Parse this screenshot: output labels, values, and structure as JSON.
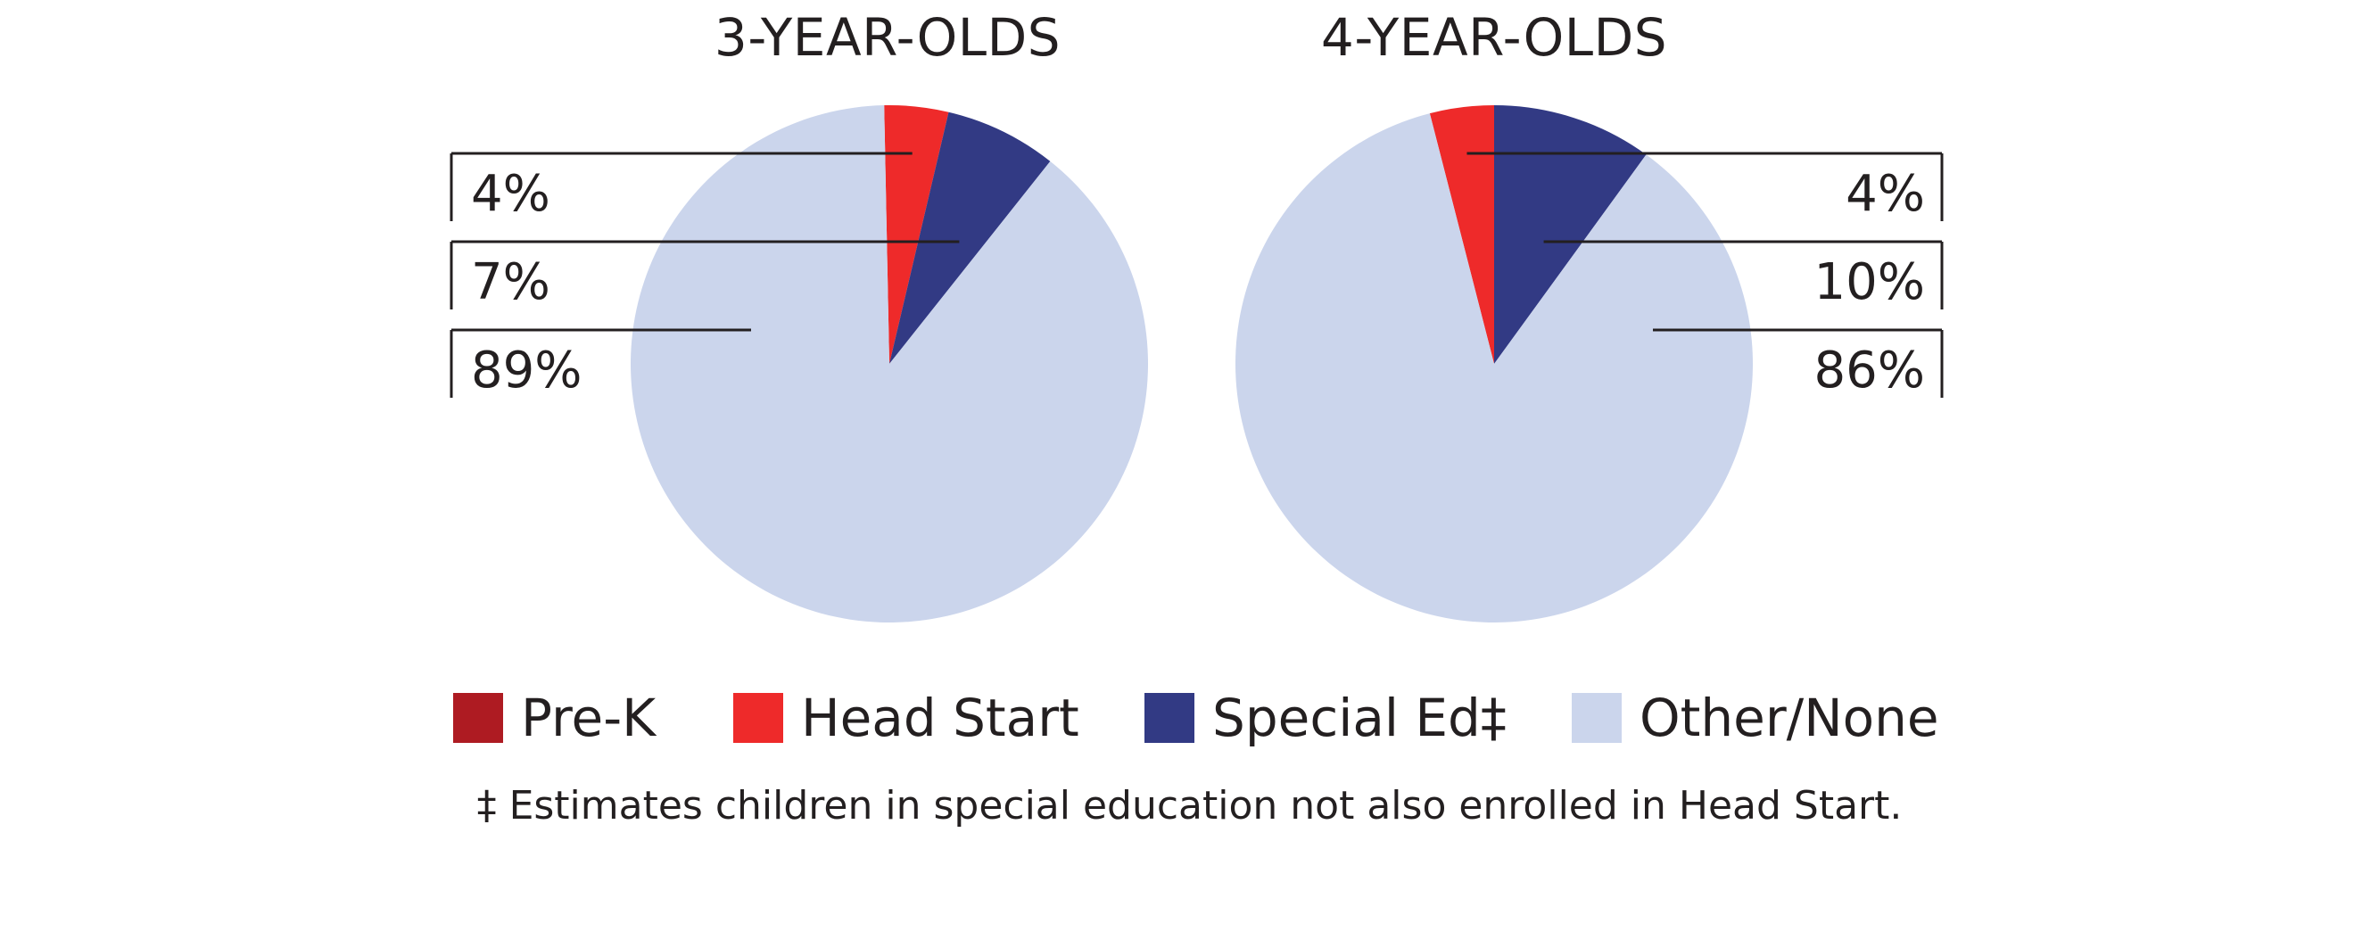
{
  "chart_data": [
    {
      "type": "pie",
      "title": "3-YEAR-OLDS",
      "slices": [
        {
          "name": "Head Start",
          "value": 4,
          "label": "4%",
          "color": "#ee2a2a"
        },
        {
          "name": "Special Ed",
          "value": 7,
          "label": "7%",
          "color": "#323a84"
        },
        {
          "name": "Other/None",
          "value": 89,
          "label": "89%",
          "color": "#cbd5ec"
        }
      ],
      "label_side": "left"
    },
    {
      "type": "pie",
      "title": "4-YEAR-OLDS",
      "slices": [
        {
          "name": "Head Start",
          "value": 4,
          "label": "4%",
          "color": "#ee2a2a"
        },
        {
          "name": "Special Ed",
          "value": 10,
          "label": "10%",
          "color": "#323a84"
        },
        {
          "name": "Other/None",
          "value": 86,
          "label": "86%",
          "color": "#cbd5ec"
        }
      ],
      "label_side": "right"
    }
  ],
  "legend": [
    {
      "label": "Pre-K",
      "color": "#ae1b22"
    },
    {
      "label": "Head Start",
      "color": "#ee2a2a"
    },
    {
      "label": "Special Ed‡",
      "color": "#323a84"
    },
    {
      "label": "Other/None",
      "color": "#cbd5ec"
    }
  ],
  "footnote": "‡ Estimates children in special education not also enrolled in Head Start."
}
